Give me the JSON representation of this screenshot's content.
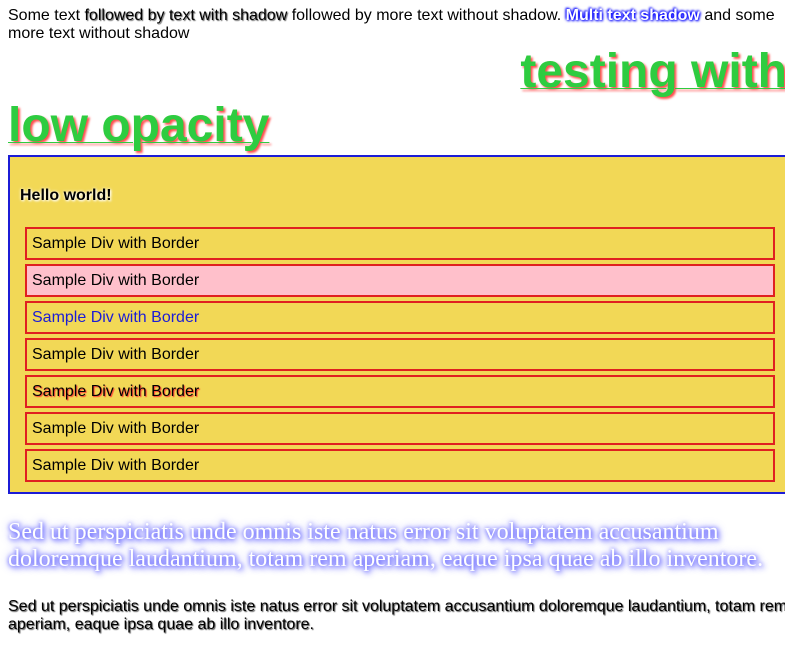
{
  "line1": {
    "part1": "Some text ",
    "part2": "followed by text with shadow",
    "part3": " followed by more text without shadow. ",
    "part4": "Multi text shadow",
    "part5": " and some more text without shadow"
  },
  "headings": {
    "testing": "testing with",
    "low": "low opacity"
  },
  "box": {
    "hello": "Hello world!",
    "items": [
      "Sample Div with Border",
      "Sample Div with Border",
      "Sample Div with Border",
      "Sample Div with Border",
      "Sample Div with Border",
      "Sample Div with Border",
      "Sample Div with Border"
    ]
  },
  "paragraphs": {
    "serif": "Sed ut perspiciatis unde omnis iste natus error sit voluptatem accusantium doloremque laudantium, totam rem aperiam, eaque ipsa quae ab illo inventore.",
    "small": "Sed ut perspiciatis unde omnis iste natus error sit voluptatem accusantium doloremque laudantium, totam rem aperiam, eaque ipsa quae ab illo inventore."
  },
  "colors": {
    "box_background": "#f2d856",
    "box_border": "#1c1cd6",
    "item_border": "#e02020",
    "heading_green": "#2ecc40",
    "pink_item": "#ffc0cb"
  }
}
